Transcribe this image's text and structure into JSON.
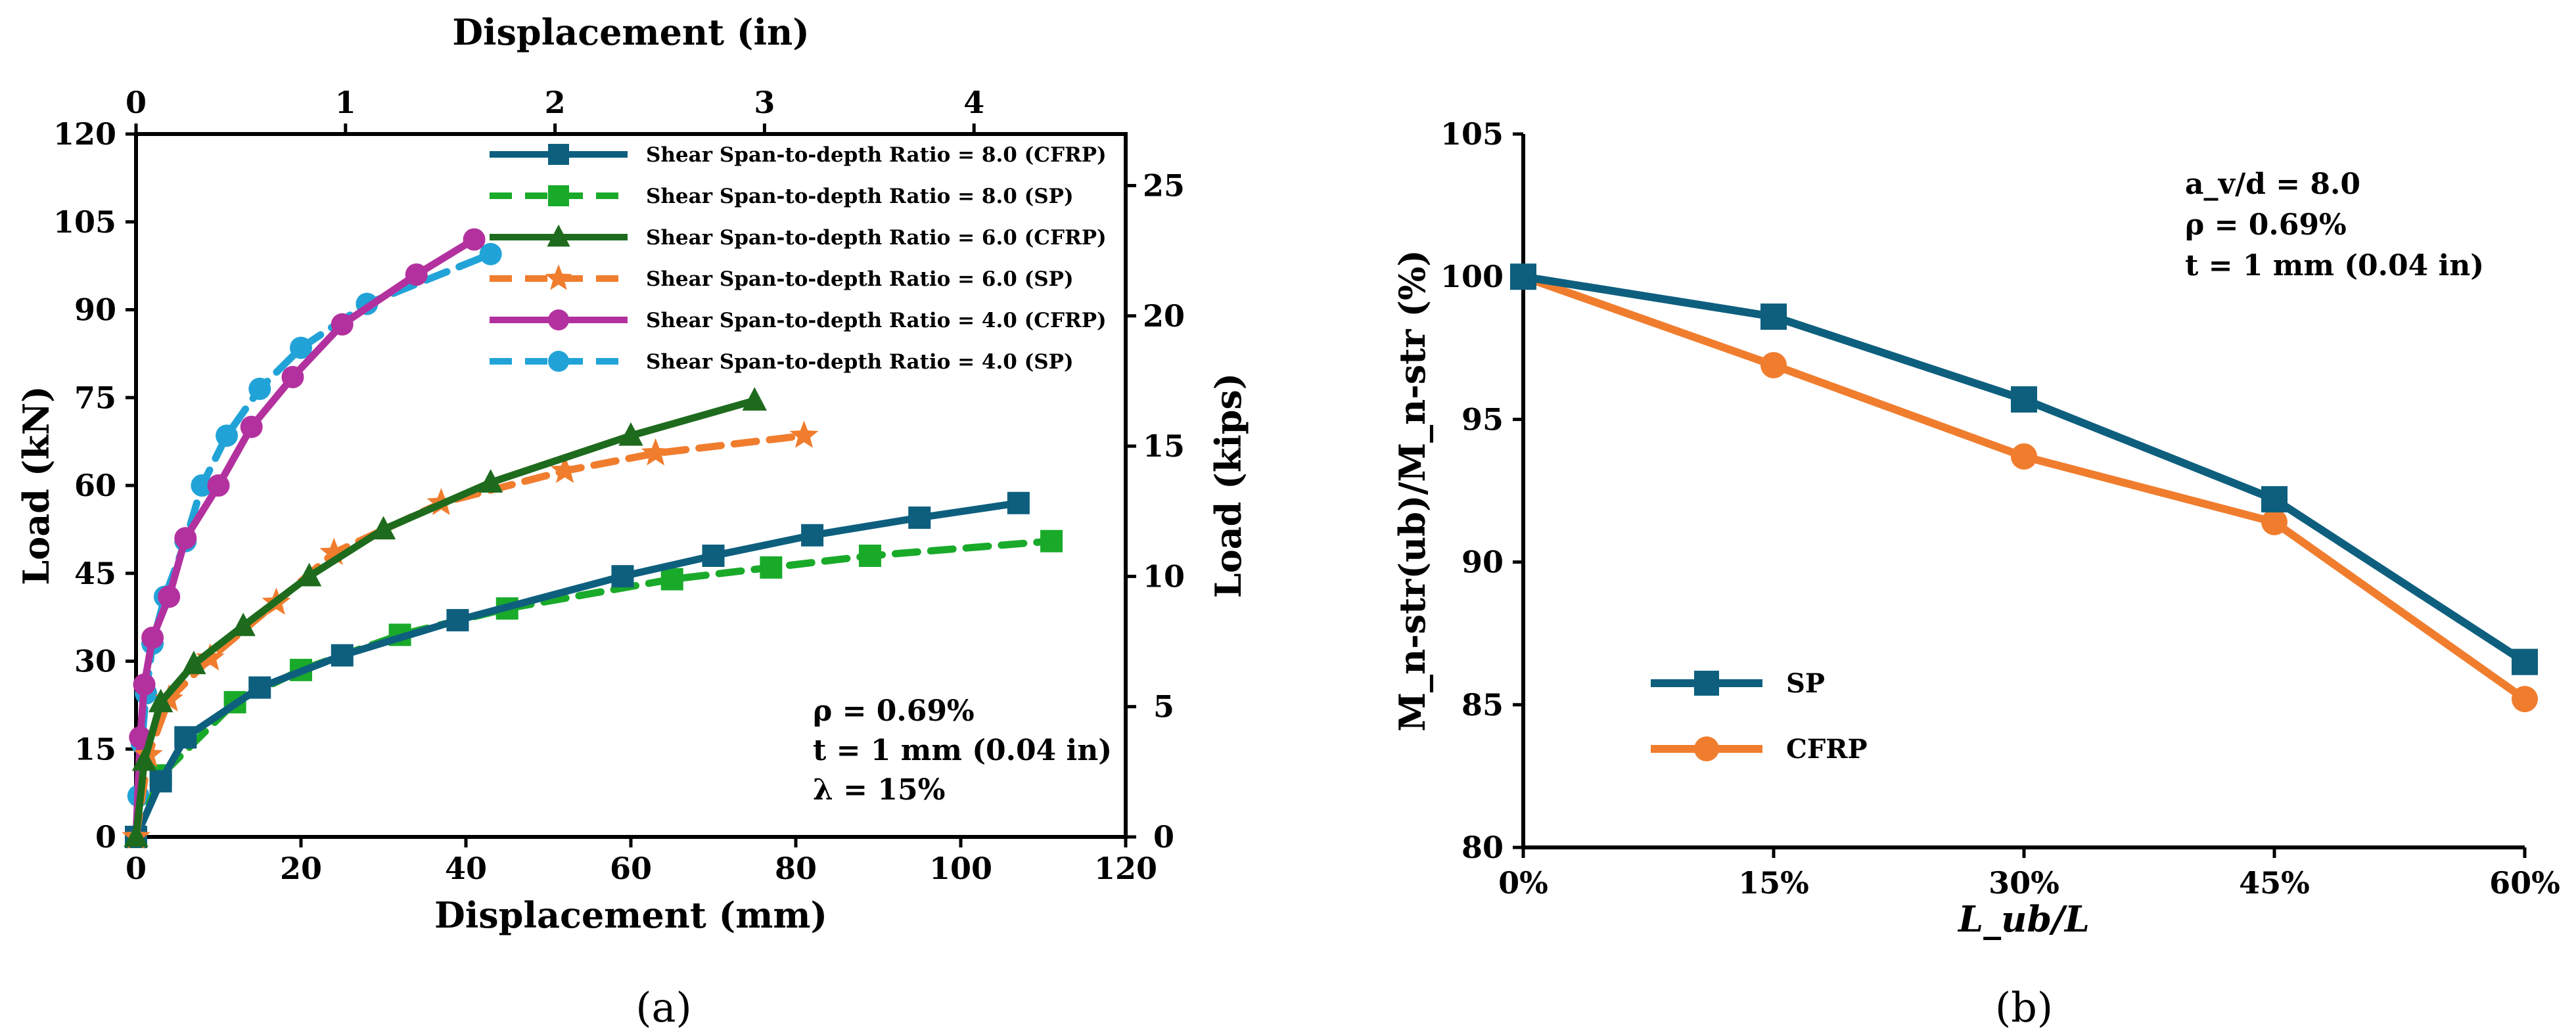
{
  "chart_data": [
    {
      "id": "a",
      "type": "line",
      "caption": "(a)",
      "xlabel": "Displacement (mm)",
      "ylabel": "Load (kN)",
      "x2label": "Displacement (in)",
      "y2label": "Load (kips)",
      "xlim": [
        0,
        120
      ],
      "ylim": [
        0,
        120
      ],
      "x2lim": [
        0,
        4.724
      ],
      "y2lim": [
        0,
        26.98
      ],
      "xticks": [
        "0",
        "20",
        "40",
        "60",
        "80",
        "100",
        "120"
      ],
      "yticks": [
        "0",
        "15",
        "30",
        "45",
        "60",
        "75",
        "90",
        "105",
        "120"
      ],
      "x2ticks": [
        "0",
        "1",
        "2",
        "3",
        "4"
      ],
      "y2ticks": [
        "0",
        "5",
        "10",
        "15",
        "20",
        "25"
      ],
      "annotations": [
        "ρ = 0.69%",
        "t = 1 mm (0.04 in)",
        "λ = 15%"
      ],
      "series": [
        {
          "name": "Shear Span-to-depth Ratio = 8.0 (CFRP)",
          "color": "#0e5f7e",
          "dash": "solid",
          "marker": "square",
          "x": [
            0,
            3,
            6,
            15,
            25,
            39,
            59,
            70,
            82,
            95,
            107
          ],
          "y": [
            0,
            9.5,
            17,
            25.5,
            31,
            37,
            44.5,
            48,
            51.5,
            54.5,
            57
          ]
        },
        {
          "name": "Shear Span-to-depth Ratio = 8.0 (SP)",
          "color": "#1aaa2a",
          "dash": "dashed",
          "marker": "square",
          "x": [
            0,
            3,
            12,
            20,
            32,
            45,
            65,
            77,
            89,
            111
          ],
          "y": [
            0,
            10.5,
            23,
            28.5,
            34.5,
            39,
            44,
            46,
            48,
            50.5
          ]
        },
        {
          "name": "Shear Span-to-depth Ratio = 6.0 (CFRP)",
          "color": "#1e6b1e",
          "dash": "solid",
          "marker": "triangle",
          "x": [
            0,
            1,
            3,
            7,
            13,
            21,
            30,
            43,
            60,
            75
          ],
          "y": [
            0,
            13,
            23,
            29.5,
            36,
            44.5,
            52.5,
            60.5,
            68.5,
            74.5
          ]
        },
        {
          "name": "Shear Span-to-depth Ratio = 6.0 (SP)",
          "color": "#f07d2e",
          "dash": "dashed",
          "marker": "star",
          "x": [
            0,
            1.5,
            4,
            9,
            17,
            24,
            37,
            52,
            63,
            81
          ],
          "y": [
            0,
            14,
            23.5,
            30.5,
            40,
            48.5,
            57,
            62.5,
            65.5,
            68.5
          ]
        },
        {
          "name": "Shear Span-to-depth Ratio = 4.0 (CFRP)",
          "color": "#b3319e",
          "dash": "solid",
          "marker": "circle",
          "x": [
            0,
            0.5,
            1,
            2,
            4,
            6,
            10,
            14,
            19,
            25,
            34,
            41
          ],
          "y": [
            0,
            17,
            26,
            34,
            41,
            51,
            60,
            70,
            78.5,
            87.5,
            96,
            102
          ]
        },
        {
          "name": "Shear Span-to-depth Ratio = 4.0 (SP)",
          "color": "#21a3d8",
          "dash": "dashed",
          "marker": "circle",
          "x": [
            0,
            0.3,
            0.7,
            1.2,
            2,
            3.5,
            6,
            8,
            11,
            15,
            20,
            28,
            43
          ],
          "y": [
            0,
            7,
            16,
            24.5,
            33,
            41,
            50.5,
            60,
            68.5,
            76.5,
            83.5,
            91,
            99.5
          ]
        }
      ]
    },
    {
      "id": "b",
      "type": "line",
      "caption": "(b)",
      "xlabel": "L_ub/L",
      "ylabel": "M_n-str(ub)/M_n-str (%)",
      "categories": [
        "0%",
        "15%",
        "30%",
        "45%",
        "60%"
      ],
      "ylim": [
        80,
        105
      ],
      "yticks": [
        "80",
        "85",
        "90",
        "95",
        "100",
        "105"
      ],
      "annotations": [
        "a_v/d = 8.0",
        "ρ = 0.69%",
        "t = 1 mm (0.04 in)"
      ],
      "series": [
        {
          "name": "SP",
          "color": "#0e5f7e",
          "marker": "square",
          "values": [
            100,
            98.6,
            95.7,
            92.2,
            86.5
          ]
        },
        {
          "name": "CFRP",
          "color": "#f07d2e",
          "marker": "circle",
          "values": [
            100,
            96.9,
            93.7,
            91.4,
            85.2
          ]
        }
      ]
    }
  ]
}
